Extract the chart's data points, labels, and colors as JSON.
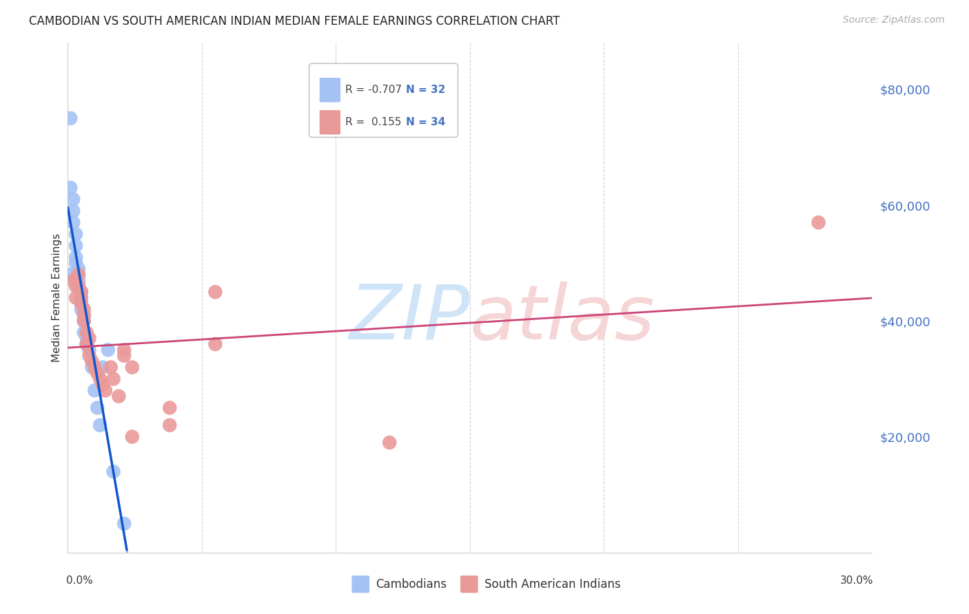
{
  "title": "CAMBODIAN VS SOUTH AMERICAN INDIAN MEDIAN FEMALE EARNINGS CORRELATION CHART",
  "source": "Source: ZipAtlas.com",
  "ylabel": "Median Female Earnings",
  "x_min": 0.0,
  "x_max": 0.3,
  "y_min": 0,
  "y_max": 88000,
  "cambodian_color": "#a4c2f4",
  "south_american_color": "#ea9999",
  "cambodian_line_color": "#1155cc",
  "south_american_line_color": "#cc4477",
  "legend_cambodian_label": "Cambodians",
  "legend_sa_label": "South American Indians",
  "R_cambodian": "R = -0.707",
  "N_cambodian": "N = 32",
  "R_sa": "R =  0.155",
  "N_sa": "N = 34",
  "cam_x": [
    0.001,
    0.001,
    0.002,
    0.002,
    0.002,
    0.003,
    0.003,
    0.003,
    0.003,
    0.004,
    0.004,
    0.004,
    0.004,
    0.005,
    0.005,
    0.005,
    0.005,
    0.006,
    0.006,
    0.006,
    0.007,
    0.007,
    0.008,
    0.009,
    0.01,
    0.011,
    0.012,
    0.013,
    0.015,
    0.017,
    0.021,
    0.001
  ],
  "cam_y": [
    75000,
    63000,
    61000,
    59000,
    57000,
    55000,
    53000,
    51000,
    50000,
    49000,
    48000,
    47000,
    46000,
    45000,
    44000,
    43000,
    42000,
    41000,
    40000,
    38000,
    37000,
    36000,
    35000,
    32000,
    28000,
    25000,
    22000,
    32000,
    35000,
    14000,
    5000,
    48000
  ],
  "sa_x": [
    0.002,
    0.003,
    0.003,
    0.004,
    0.004,
    0.005,
    0.005,
    0.005,
    0.006,
    0.006,
    0.006,
    0.007,
    0.007,
    0.008,
    0.008,
    0.009,
    0.01,
    0.011,
    0.012,
    0.013,
    0.014,
    0.016,
    0.017,
    0.019,
    0.021,
    0.021,
    0.024,
    0.024,
    0.038,
    0.038,
    0.055,
    0.055,
    0.12,
    0.28
  ],
  "sa_y": [
    47000,
    46000,
    44000,
    48000,
    46000,
    45000,
    44000,
    43000,
    42000,
    41000,
    40000,
    38000,
    36000,
    37000,
    34000,
    33000,
    32000,
    31000,
    30000,
    29000,
    28000,
    32000,
    30000,
    27000,
    35000,
    34000,
    32000,
    20000,
    25000,
    22000,
    45000,
    36000,
    19000,
    57000
  ],
  "grid_color": "#cccccc",
  "watermark_zip_color": "#d0e4f7",
  "watermark_atlas_color": "#f5d5d5"
}
